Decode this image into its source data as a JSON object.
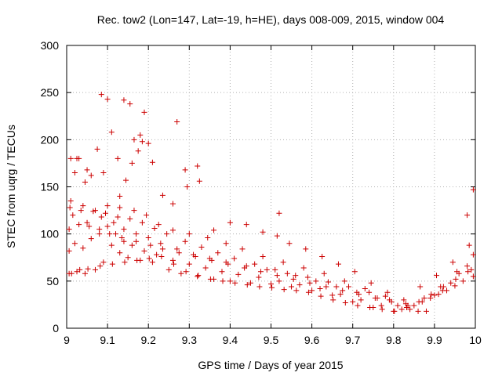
{
  "chart_data": {
    "type": "scatter",
    "title": "Rec. tow2 (Lon=147, Lat=-19, h=HE), days 008-009, 2015, window 004",
    "xlabel": "GPS time / Days of year 2015",
    "ylabel": "STEC from uqrg / TECUs",
    "xlim": [
      9,
      10
    ],
    "ylim": [
      0,
      300
    ],
    "xticks": [
      9,
      9.1,
      9.2,
      9.3,
      9.4,
      9.5,
      9.6,
      9.7,
      9.8,
      9.9,
      10
    ],
    "xtick_labels": [
      "9",
      "9.1",
      "9.2",
      "9.3",
      "9.4",
      "9.5",
      "9.6",
      "9.7",
      "9.8",
      "9.9",
      "10"
    ],
    "yticks": [
      0,
      50,
      100,
      150,
      200,
      250,
      300
    ],
    "ytick_labels": [
      "0",
      "50",
      "100",
      "150",
      "200",
      "250",
      "300"
    ],
    "marker": "+",
    "color": "#cc0000",
    "grid": true,
    "series": [
      {
        "name": "STEC",
        "x": [
          9.006,
          9.025,
          9.045,
          9.07,
          9.09,
          9.11,
          9.13,
          9.15,
          9.18,
          9.21,
          9.25,
          9.28,
          9.32,
          9.36,
          9.4,
          9.45,
          9.5,
          9.55,
          9.6,
          9.65,
          9.7,
          9.75,
          9.8,
          9.85,
          9.9,
          9.95,
          9.995,
          9.006,
          9.02,
          9.04,
          9.06,
          9.08,
          9.1,
          9.12,
          9.14,
          9.16,
          9.19,
          9.22,
          9.26,
          9.3,
          9.34,
          9.38,
          9.42,
          9.47,
          9.52,
          9.57,
          9.62,
          9.67,
          9.72,
          9.77,
          9.82,
          9.87,
          9.92,
          9.97,
          9.006,
          9.03,
          9.055,
          9.085,
          9.115,
          9.14,
          9.17,
          9.2,
          9.23,
          9.27,
          9.31,
          9.35,
          9.39,
          9.44,
          9.49,
          9.54,
          9.59,
          9.64,
          9.69,
          9.74,
          9.79,
          9.84,
          9.89,
          9.94,
          9.99,
          9.008,
          9.035,
          9.065,
          9.095,
          9.125,
          9.155,
          9.185,
          9.215,
          9.245,
          9.29,
          9.33,
          9.37,
          9.41,
          9.46,
          9.51,
          9.56,
          9.61,
          9.66,
          9.71,
          9.76,
          9.81,
          9.86,
          9.91,
          9.96,
          9.01,
          9.04,
          9.07,
          9.1,
          9.13,
          9.165,
          9.195,
          9.225,
          9.26,
          9.3,
          9.345,
          9.39,
          9.43,
          9.48,
          9.53,
          9.58,
          9.63,
          9.68,
          9.73,
          9.78,
          9.83,
          9.88,
          9.93,
          9.98,
          9.015,
          9.05,
          9.08,
          9.105,
          9.135,
          9.17,
          9.205,
          9.235,
          9.275,
          9.315,
          9.355,
          9.395,
          9.435,
          9.475,
          9.515,
          9.555,
          9.595,
          9.635,
          9.675,
          9.715,
          9.755,
          9.795,
          9.835,
          9.875,
          9.915,
          9.955,
          9.995,
          9.02,
          9.03,
          9.05,
          9.075,
          9.09,
          9.1,
          9.125,
          9.14,
          9.155,
          9.165,
          9.18,
          9.19,
          9.2,
          9.27,
          9.29,
          9.32,
          9.52,
          9.98,
          9.995,
          9.01,
          9.025,
          9.045,
          9.06,
          9.085,
          9.11,
          9.13,
          9.145,
          9.16,
          9.175,
          9.185,
          9.21,
          9.235,
          9.26,
          9.295,
          9.325,
          9.36,
          9.4,
          9.44,
          9.48,
          9.515,
          9.545,
          9.585,
          9.625,
          9.665,
          9.705,
          9.745,
          9.785,
          9.825,
          9.865,
          9.905,
          9.945,
          9.985,
          9.012,
          9.032,
          9.052,
          9.082,
          9.112,
          9.142,
          9.172,
          9.202,
          9.232,
          9.262,
          9.292,
          9.322,
          9.352,
          9.382,
          9.412,
          9.442,
          9.472,
          9.502,
          9.532,
          9.562,
          9.592,
          9.622,
          9.652,
          9.682,
          9.712,
          9.742,
          9.772,
          9.802,
          9.832,
          9.862,
          9.892,
          9.922,
          9.952,
          9.982
        ],
        "y": [
          58,
          60,
          58,
          62,
          70,
          88,
          80,
          75,
          72,
          70,
          62,
          58,
          55,
          52,
          50,
          48,
          47,
          44,
          40,
          35,
          28,
          22,
          18,
          24,
          35,
          45,
          55,
          82,
          90,
          85,
          95,
          100,
          108,
          100,
          92,
          88,
          82,
          78,
          72,
          68,
          64,
          60,
          57,
          54,
          50,
          46,
          42,
          36,
          30,
          24,
          20,
          28,
          40,
          50,
          105,
          110,
          108,
          118,
          112,
          105,
          100,
          96,
          90,
          84,
          78,
          74,
          70,
          66,
          62,
          58,
          54,
          49,
          44,
          38,
          30,
          20,
          32,
          48,
          62,
          128,
          125,
          124,
          122,
          118,
          116,
          112,
          106,
          100,
          92,
          86,
          80,
          74,
          68,
          62,
          56,
          50,
          44,
          38,
          32,
          24,
          18,
          36,
          58,
          135,
          130,
          125,
          130,
          128,
          125,
          120,
          110,
          104,
          100,
          96,
          90,
          84,
          76,
          70,
          64,
          58,
          50,
          42,
          34,
          26,
          18,
          40,
          66,
          120,
          112,
          105,
          100,
          96,
          92,
          88,
          84,
          80,
          76,
          72,
          68,
          64,
          60,
          56,
          52,
          48,
          44,
          40,
          36,
          32,
          28,
          24,
          32,
          44,
          60,
          78,
          165,
          180,
          168,
          190,
          165,
          243,
          180,
          242,
          238,
          200,
          205,
          229,
          196,
          219,
          168,
          172,
          122,
          120,
          147,
          180,
          180,
          155,
          162,
          248,
          208,
          140,
          157,
          175,
          188,
          198,
          176,
          141,
          132,
          150,
          156,
          104,
          112,
          110,
          102,
          98,
          90,
          84,
          76,
          68,
          60,
          48,
          38,
          30,
          44,
          56,
          70,
          88,
          58,
          62,
          63,
          66,
          68,
          70,
          72,
          74,
          76,
          68,
          60,
          56,
          52,
          50,
          48,
          46,
          44,
          43,
          41,
          40,
          38,
          34,
          30,
          27,
          24,
          22,
          20,
          18,
          22,
          28,
          36,
          44,
          52,
          60
        ]
      }
    ]
  }
}
